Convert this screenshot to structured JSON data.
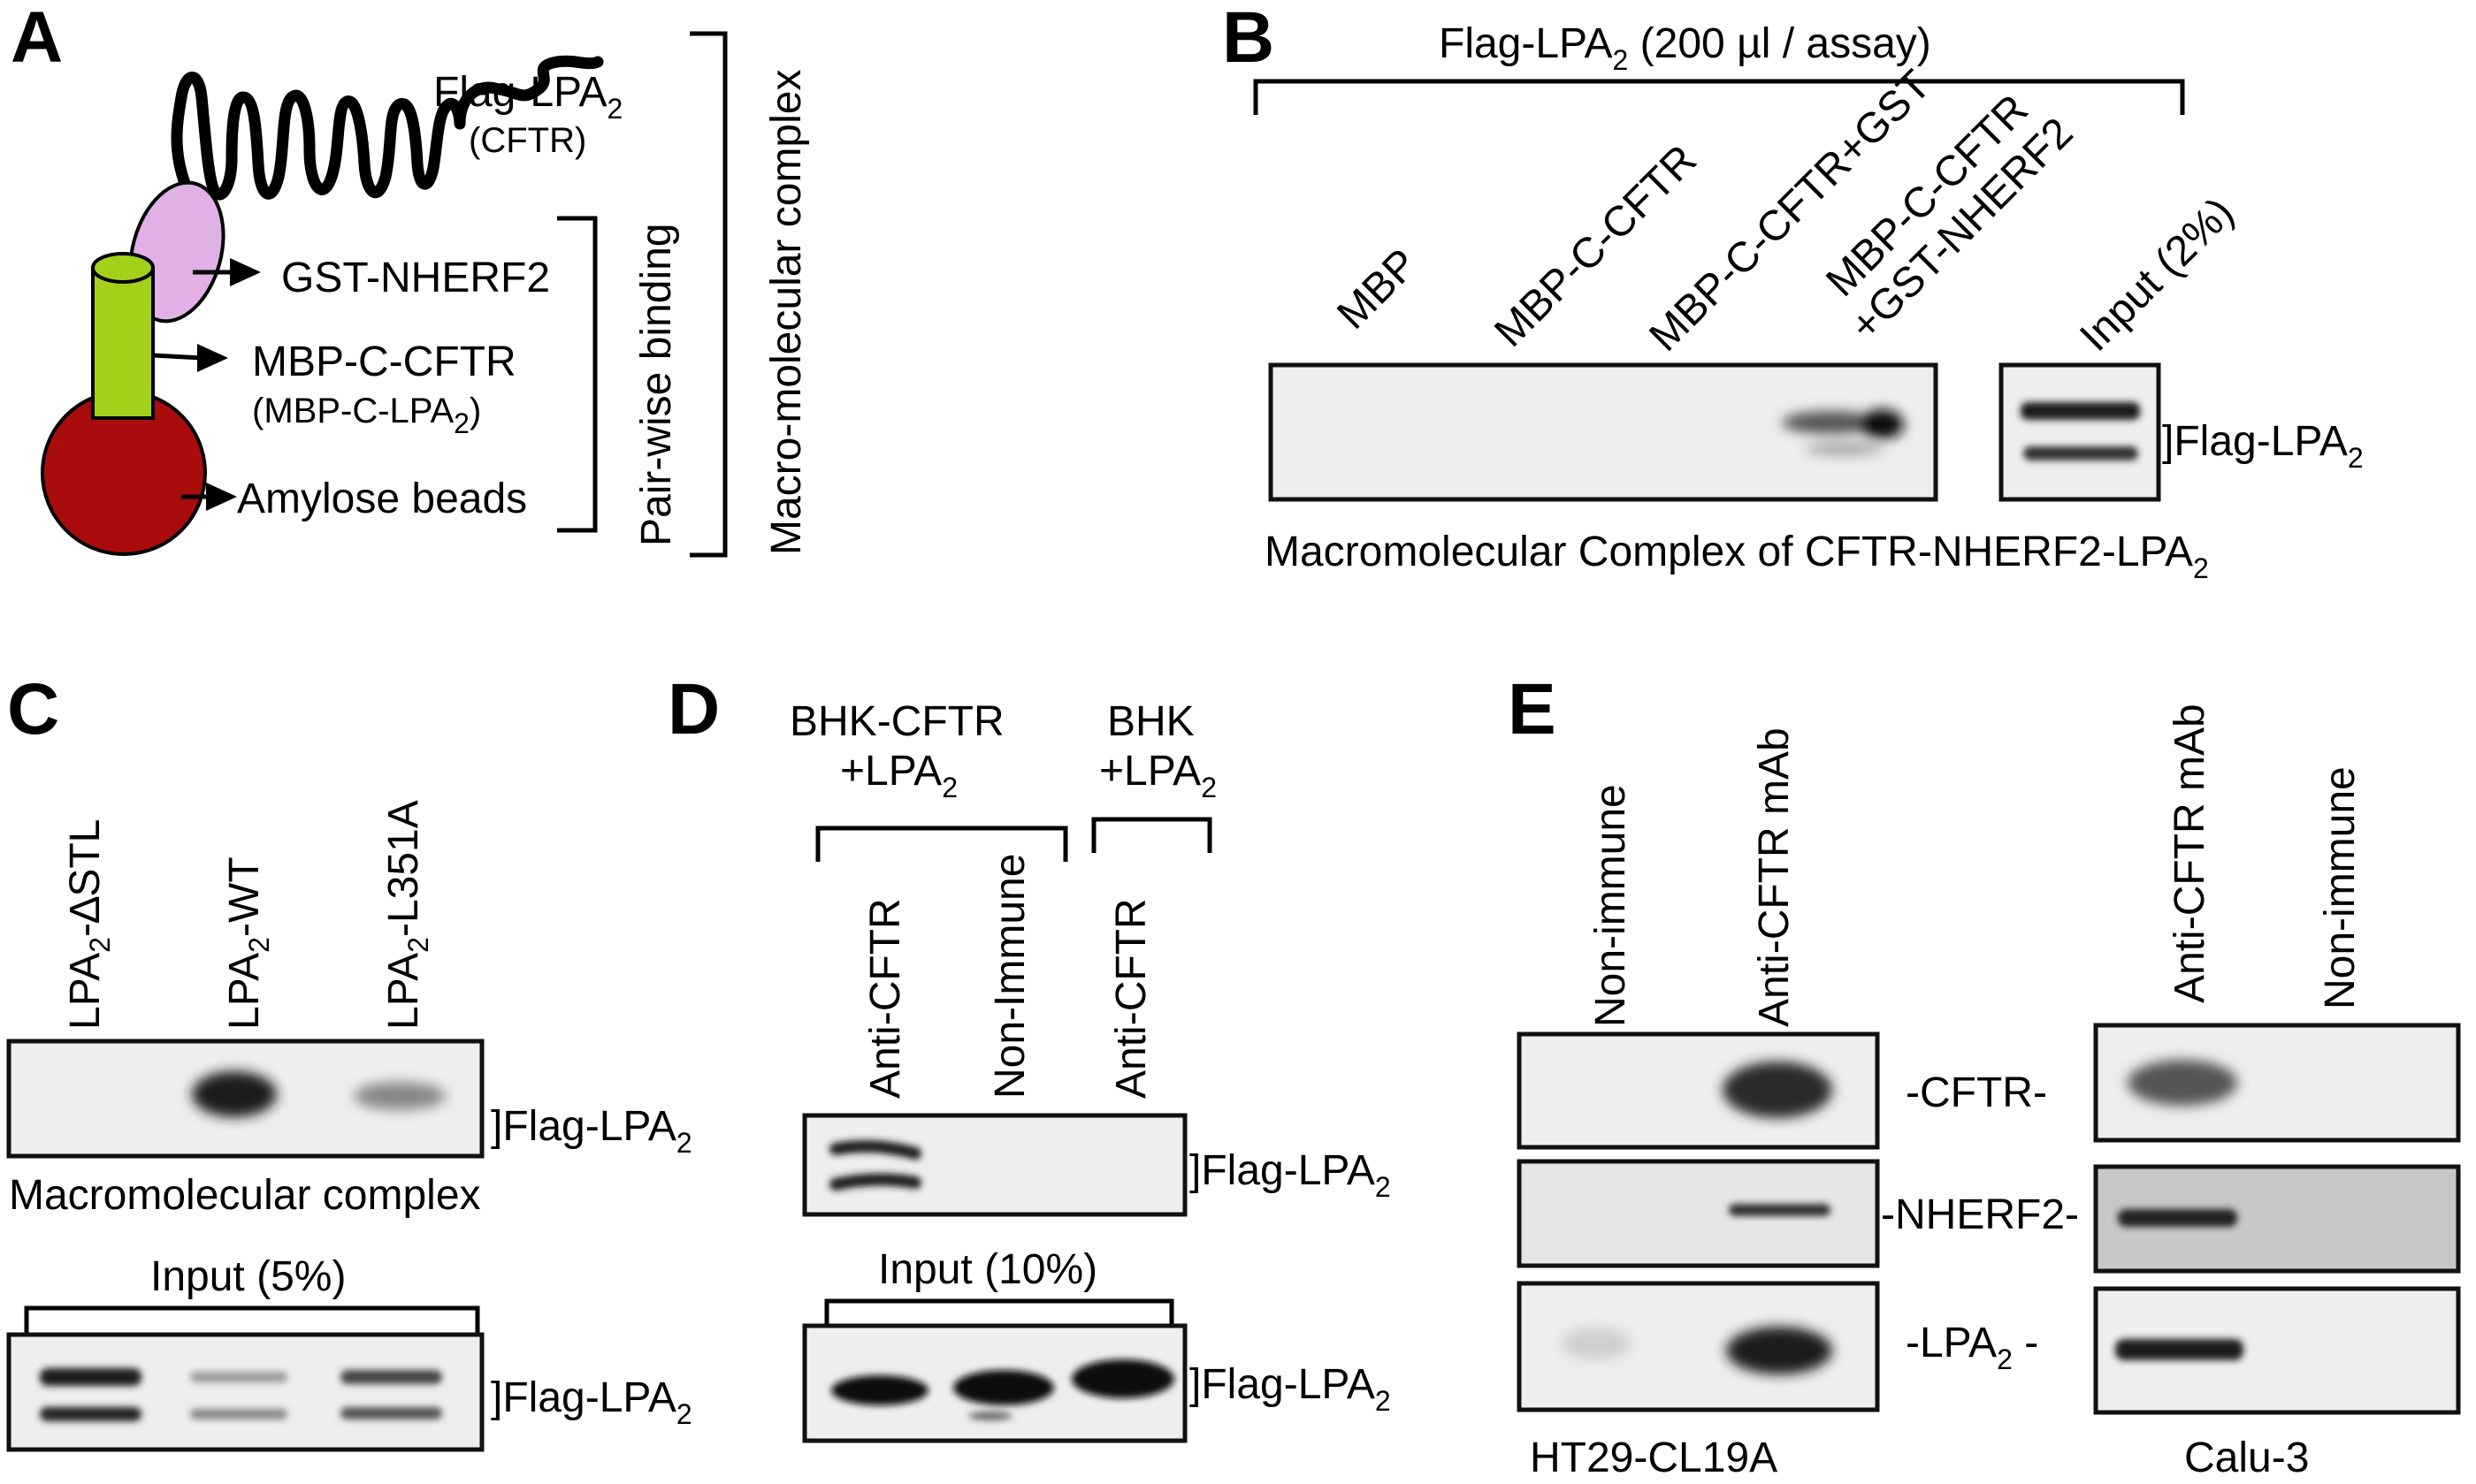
{
  "panels": {
    "a": {
      "letter": "A",
      "flag": "Flag-LPA",
      "flag_cftr": "(CFTR)",
      "gst": "GST-NHERF2",
      "mbp": "MBP-C-CFTR",
      "mbp_lpa": "(MBP-C-LPA",
      "mbp_lpa_end": ")",
      "amylose": "Amylose beads",
      "pairwise": "Pair-wise binding",
      "macro": "Macro-molecular complex"
    },
    "b": {
      "letter": "B",
      "header": "Flag-LPA",
      "header_tail": " (200 µl / assay)",
      "lanes": [
        "MBP",
        "MBP-C-CFTR",
        "MBP-C-CFTR+GST",
        "MBP-C-CFTR",
        "+GST-NHERF2",
        "Input (2%)"
      ],
      "band": "]Flag-LPA",
      "caption": "Macromolecular Complex of CFTR-NHERF2-LPA"
    },
    "c": {
      "letter": "C",
      "lane_prefix": "LPA",
      "lane_suffixes": [
        "-∆STL",
        "-WT",
        "-L351A"
      ],
      "band": "]Flag-LPA",
      "caption": "Macromolecular complex",
      "input": "Input (5%)"
    },
    "d": {
      "letter": "D",
      "group1_line1": "BHK-CFTR",
      "group1_line2": "+LPA",
      "group2_line1": "BHK",
      "group2_line2": "+LPA",
      "lanes": [
        "Anti-CFTR",
        "Non-Immune",
        "Anti-CFTR"
      ],
      "band": "]Flag-LPA",
      "input": "Input (10%)"
    },
    "e": {
      "letter": "E",
      "lanes_left": [
        "Non-immune",
        "Anti-CFTR mAb"
      ],
      "lanes_right": [
        "Anti-CFTR mAb",
        "Non-immune"
      ],
      "row_cftr": "-CFTR-",
      "row_nherf2": "-NHERF2-",
      "row_lpa": "-LPA",
      "row_lpa_end": " -",
      "cell_left": "HT29-CL19A",
      "cell_right": "Calu-3"
    }
  },
  "subscript": "2",
  "colors": {
    "lipid_tail": "#000000",
    "nherf2_oval": "#e0b0e6",
    "cftr_cylinder": "#a3d11a",
    "amylose_bead": "#a80c0c",
    "blot_background": "#eeeeee"
  }
}
